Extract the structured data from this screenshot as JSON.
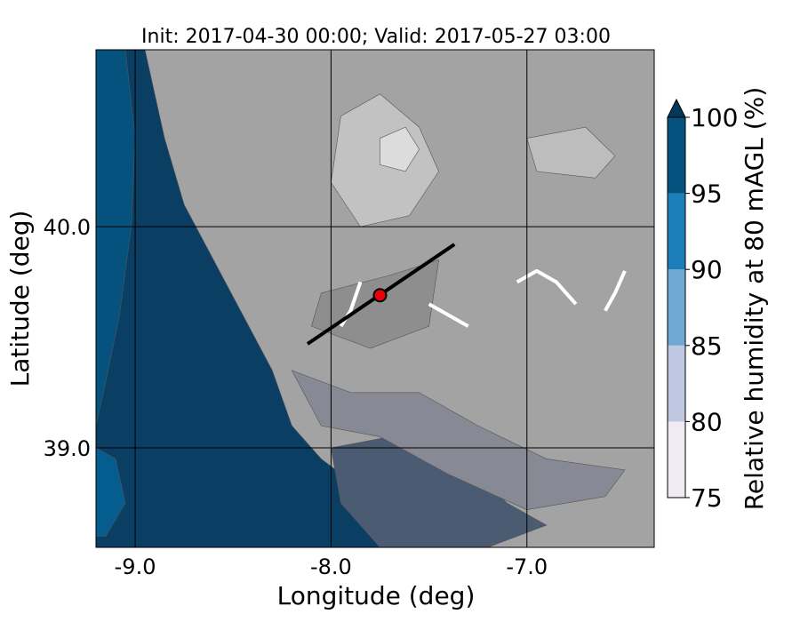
{
  "chart_data": {
    "type": "heatmap",
    "title": "Init: 2017-04-30 00:00; Valid: 2017-05-27 03:00",
    "xlabel": "Longitude (deg)",
    "ylabel": "Latitude (deg)",
    "xlim": [
      -9.2,
      -6.35
    ],
    "ylim": [
      38.55,
      40.8
    ],
    "x_ticks": [
      {
        "value": -9.0,
        "label": "-9.0"
      },
      {
        "value": -8.0,
        "label": "-8.0"
      },
      {
        "value": -7.0,
        "label": "-7.0"
      }
    ],
    "y_ticks": [
      {
        "value": 40.0,
        "label": "40.0"
      },
      {
        "value": 39.0,
        "label": "39.0"
      }
    ],
    "colorbar": {
      "label": "Relative humidity at 80 mAGL (%)",
      "extend": "max",
      "levels": [
        {
          "from": 75,
          "to": 80,
          "color": "#efeaf4"
        },
        {
          "from": 80,
          "to": 85,
          "color": "#bec8e1"
        },
        {
          "from": 85,
          "to": 90,
          "color": "#6fa8d2"
        },
        {
          "from": 90,
          "to": 95,
          "color": "#1c7fba"
        },
        {
          "from": 95,
          "to": 100,
          "color": "#05527f"
        }
      ],
      "over_color": "#023858",
      "ticks": [
        {
          "value": 75,
          "label": "75"
        },
        {
          "value": 80,
          "label": "80"
        },
        {
          "value": 85,
          "label": "85"
        },
        {
          "value": 90,
          "label": "90"
        },
        {
          "value": 95,
          "label": "95"
        },
        {
          "value": 100,
          "label": "100"
        }
      ]
    },
    "transect": {
      "start": [
        -8.12,
        39.47
      ],
      "end": [
        -7.37,
        39.92
      ]
    },
    "marker": {
      "lon": -7.75,
      "lat": 39.69,
      "color": "#e8000b"
    },
    "background_color": "#a3a3a3",
    "regions": [
      {
        "color": "#0b3e63",
        "points": [
          [
            -9.2,
            40.8
          ],
          [
            -8.95,
            40.8
          ],
          [
            -8.85,
            40.4
          ],
          [
            -8.75,
            40.1
          ],
          [
            -8.6,
            39.85
          ],
          [
            -8.45,
            39.6
          ],
          [
            -8.3,
            39.35
          ],
          [
            -8.2,
            39.1
          ],
          [
            -8.05,
            38.95
          ],
          [
            -7.9,
            38.85
          ],
          [
            -7.75,
            38.75
          ],
          [
            -7.6,
            38.55
          ],
          [
            -9.2,
            38.55
          ]
        ]
      },
      {
        "color": "#05527f",
        "points": [
          [
            -9.2,
            40.8
          ],
          [
            -9.05,
            40.8
          ],
          [
            -9.0,
            40.4
          ],
          [
            -9.02,
            40.0
          ],
          [
            -9.08,
            39.6
          ],
          [
            -9.15,
            39.3
          ],
          [
            -9.2,
            39.1
          ]
        ]
      },
      {
        "color": "#055d8f",
        "points": [
          [
            -9.2,
            39.0
          ],
          [
            -9.1,
            38.95
          ],
          [
            -9.05,
            38.75
          ],
          [
            -9.15,
            38.6
          ],
          [
            -9.2,
            38.6
          ]
        ]
      },
      {
        "color": "#4a5b72",
        "points": [
          [
            -8.0,
            39.0
          ],
          [
            -7.7,
            39.05
          ],
          [
            -7.35,
            38.95
          ],
          [
            -7.1,
            38.75
          ],
          [
            -6.9,
            38.65
          ],
          [
            -7.2,
            38.55
          ],
          [
            -7.75,
            38.55
          ],
          [
            -7.95,
            38.75
          ]
        ]
      },
      {
        "color": "#878995",
        "points": [
          [
            -8.2,
            39.35
          ],
          [
            -7.9,
            39.25
          ],
          [
            -7.55,
            39.25
          ],
          [
            -7.25,
            39.1
          ],
          [
            -6.9,
            38.95
          ],
          [
            -6.5,
            38.9
          ],
          [
            -6.6,
            38.78
          ],
          [
            -7.0,
            38.72
          ],
          [
            -7.4,
            38.88
          ],
          [
            -7.75,
            39.05
          ],
          [
            -8.05,
            39.1
          ]
        ]
      },
      {
        "color": "#c2c2c2",
        "points": [
          [
            -7.95,
            40.5
          ],
          [
            -7.75,
            40.6
          ],
          [
            -7.55,
            40.45
          ],
          [
            -7.45,
            40.25
          ],
          [
            -7.6,
            40.05
          ],
          [
            -7.85,
            40.0
          ],
          [
            -8.0,
            40.2
          ]
        ]
      },
      {
        "color": "#dcdcdc",
        "points": [
          [
            -7.75,
            40.4
          ],
          [
            -7.62,
            40.45
          ],
          [
            -7.55,
            40.35
          ],
          [
            -7.62,
            40.25
          ],
          [
            -7.75,
            40.28
          ]
        ]
      },
      {
        "color": "#bdbdbd",
        "points": [
          [
            -7.0,
            40.4
          ],
          [
            -6.7,
            40.45
          ],
          [
            -6.55,
            40.32
          ],
          [
            -6.65,
            40.22
          ],
          [
            -6.95,
            40.25
          ]
        ]
      },
      {
        "color": "#8e8e8e",
        "points": [
          [
            -8.05,
            39.7
          ],
          [
            -7.7,
            39.78
          ],
          [
            -7.45,
            39.85
          ],
          [
            -7.5,
            39.55
          ],
          [
            -7.8,
            39.45
          ],
          [
            -8.1,
            39.55
          ]
        ]
      }
    ],
    "rivers": [
      [
        [
          -6.75,
          39.65
        ],
        [
          -6.85,
          39.75
        ],
        [
          -6.95,
          39.8
        ],
        [
          -7.05,
          39.75
        ]
      ],
      [
        [
          -7.85,
          39.75
        ],
        [
          -7.9,
          39.62
        ],
        [
          -7.95,
          39.55
        ]
      ],
      [
        [
          -7.5,
          39.65
        ],
        [
          -7.4,
          39.6
        ],
        [
          -7.3,
          39.55
        ]
      ],
      [
        [
          -6.6,
          39.62
        ],
        [
          -6.55,
          39.7
        ],
        [
          -6.5,
          39.8
        ]
      ]
    ]
  }
}
